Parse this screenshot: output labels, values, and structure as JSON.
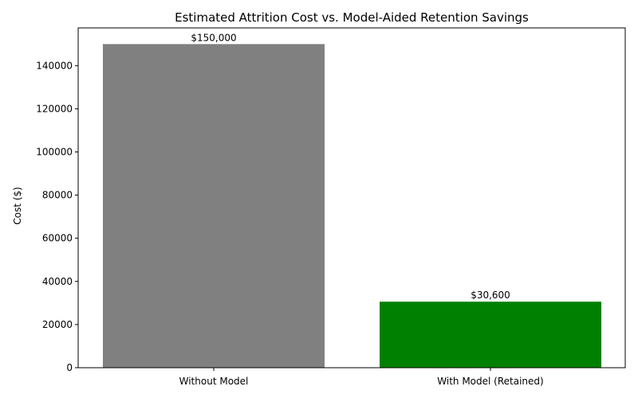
{
  "chart_data": {
    "type": "bar",
    "title": "Estimated Attrition Cost vs. Model-Aided Retention Savings",
    "xlabel": "",
    "ylabel": "Cost ($)",
    "categories": [
      "Without Model",
      "With Model (Retained)"
    ],
    "values": [
      150000,
      30600
    ],
    "value_labels": [
      "$150,000",
      "$30,600"
    ],
    "colors": [
      "#808080",
      "#008000"
    ],
    "ylim": [
      0,
      157500
    ],
    "yticks": [
      0,
      20000,
      40000,
      60000,
      80000,
      100000,
      120000,
      140000
    ],
    "grid": false,
    "legend": "none"
  }
}
